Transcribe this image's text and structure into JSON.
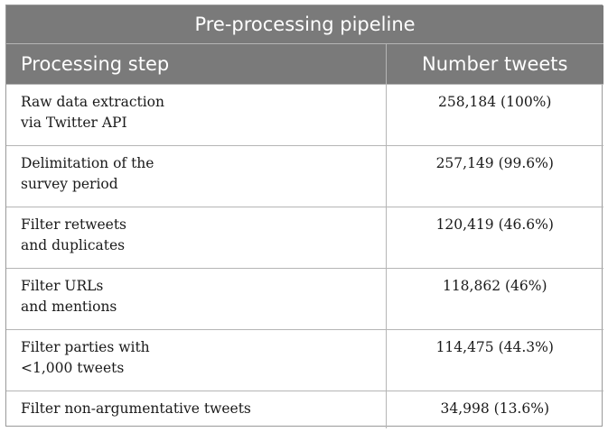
{
  "table": {
    "title": "Pre-processing pipeline",
    "headers": [
      "Processing step",
      "Number tweets"
    ],
    "rows": [
      {
        "step_line1": "Raw data extraction",
        "step_line2": "via Twitter API",
        "count": "258,184 (100%)"
      },
      {
        "step_line1": "Delimitation of the",
        "step_line2": "survey period",
        "count": "257,149 (99.6%)"
      },
      {
        "step_line1": "Filter retweets",
        "step_line2": "and duplicates",
        "count": "120,419 (46.6%)"
      },
      {
        "step_line1": "Filter URLs",
        "step_line2": "and mentions",
        "count": "118,862 (46%)"
      },
      {
        "step_line1": "Filter parties with",
        "step_line2": "<1,000 tweets",
        "count": "114,475 (44.3%)"
      },
      {
        "step_line1": "Filter non-argumentative tweets",
        "step_line2": "",
        "count": "34,998 (13.6%)"
      }
    ]
  }
}
